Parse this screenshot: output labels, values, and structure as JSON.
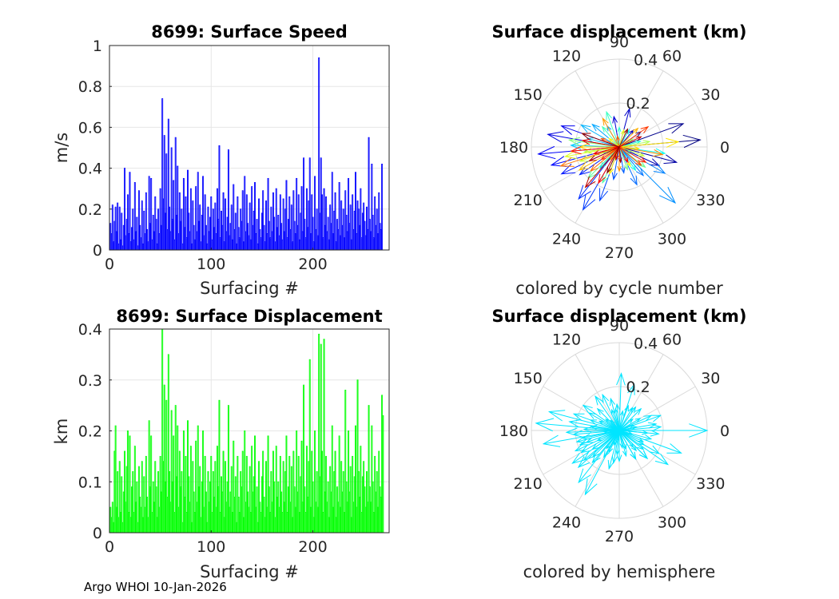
{
  "footer": "Argo WHOI 10-Jan-2026",
  "chart_data": [
    {
      "type": "bar",
      "id": "speed",
      "title": "8699: Surface Speed",
      "xlabel": "Surfacing #",
      "ylabel": "m/s",
      "xlim": [
        0,
        275
      ],
      "ylim": [
        0,
        1
      ],
      "xticks": [
        "0",
        "100",
        "200"
      ],
      "yticks": [
        "0",
        "0.2",
        "0.4",
        "0.6",
        "0.8",
        "1"
      ],
      "grid": true,
      "bar_color": "#0000ff",
      "values": [
        0.13,
        0.08,
        0.22,
        0.04,
        0.14,
        0.21,
        0.09,
        0.23,
        0.03,
        0.21,
        0.05,
        0.18,
        0.02,
        0.12,
        0.4,
        0.07,
        0.15,
        0.27,
        0.08,
        0.38,
        0.04,
        0.11,
        0.2,
        0.05,
        0.33,
        0.09,
        0.16,
        0.02,
        0.29,
        0.12,
        0.06,
        0.24,
        0.03,
        0.19,
        0.08,
        0.28,
        0.1,
        0.04,
        0.36,
        0.13,
        0.35,
        0.05,
        0.17,
        0.09,
        0.26,
        0.15,
        0.03,
        0.2,
        0.08,
        0.3,
        0.12,
        0.74,
        0.25,
        0.56,
        0.18,
        0.47,
        0.1,
        0.64,
        0.21,
        0.09,
        0.5,
        0.15,
        0.34,
        0.05,
        0.55,
        0.17,
        0.41,
        0.08,
        0.28,
        0.14,
        0.2,
        0.03,
        0.35,
        0.11,
        0.26,
        0.06,
        0.39,
        0.18,
        0.09,
        0.3,
        0.03,
        0.24,
        0.12,
        0.05,
        0.31,
        0.09,
        0.38,
        0.14,
        0.22,
        0.04,
        0.17,
        0.36,
        0.07,
        0.27,
        0.12,
        0.03,
        0.21,
        0.09,
        0.16,
        0.26,
        0.05,
        0.2,
        0.11,
        0.23,
        0.08,
        0.3,
        0.15,
        0.51,
        0.06,
        0.19,
        0.12,
        0.28,
        0.04,
        0.25,
        0.09,
        0.16,
        0.49,
        0.07,
        0.13,
        0.22,
        0.05,
        0.32,
        0.1,
        0.18,
        0.03,
        0.26,
        0.11,
        0.06,
        0.2,
        0.14,
        0.29,
        0.04,
        0.36,
        0.09,
        0.27,
        0.13,
        0.07,
        0.23,
        0.05,
        0.31,
        0.12,
        0.19,
        0.33,
        0.08,
        0.15,
        0.03,
        0.25,
        0.1,
        0.06,
        0.18,
        0.29,
        0.12,
        0.04,
        0.24,
        0.08,
        0.35,
        0.14,
        0.06,
        0.21,
        0.09,
        0.28,
        0.16,
        0.04,
        0.3,
        0.11,
        0.17,
        0.07,
        0.27,
        0.13,
        0.05,
        0.25,
        0.09,
        0.2,
        0.34,
        0.06,
        0.15,
        0.26,
        0.1,
        0.22,
        0.04,
        0.29,
        0.14,
        0.08,
        0.35,
        0.12,
        0.27,
        0.05,
        0.18,
        0.31,
        0.09,
        0.45,
        0.15,
        0.06,
        0.3,
        0.11,
        0.24,
        0.45,
        0.08,
        0.27,
        0.16,
        0.04,
        0.36,
        0.1,
        0.2,
        0.07,
        0.94,
        0.18,
        0.45,
        0.27,
        0.06,
        0.3,
        0.12,
        0.26,
        0.09,
        0.16,
        0.05,
        0.22,
        0.13,
        0.38,
        0.08,
        0.19,
        0.28,
        0.04,
        0.15,
        0.1,
        0.33,
        0.07,
        0.24,
        0.12,
        0.2,
        0.06,
        0.29,
        0.17,
        0.09,
        0.35,
        0.13,
        0.22,
        0.05,
        0.27,
        0.1,
        0.19,
        0.38,
        0.08,
        0.24,
        0.2,
        0.12,
        0.3,
        0.06,
        0.18,
        0.23,
        0.14,
        0.07,
        0.21,
        0.1,
        0.55,
        0.15,
        0.09,
        0.42,
        0.17,
        0.06,
        0.26,
        0.12,
        0.2,
        0.08,
        0.28,
        0.13,
        0.1,
        0.42
      ]
    },
    {
      "type": "bar",
      "id": "displacement",
      "title": "8699: Surface Displacement",
      "xlabel": "Surfacing #",
      "ylabel": "km",
      "xlim": [
        0,
        275
      ],
      "ylim": [
        0,
        0.4
      ],
      "xticks": [
        "0",
        "100",
        "200"
      ],
      "yticks": [
        "0",
        "0.1",
        "0.2",
        "0.3",
        "0.4"
      ],
      "grid": true,
      "bar_color": "#00ff00",
      "values": [
        0.05,
        0.03,
        0.06,
        0.02,
        0.16,
        0.21,
        0.05,
        0.12,
        0.03,
        0.14,
        0.04,
        0.11,
        0.02,
        0.08,
        0.16,
        0.06,
        0.13,
        0.2,
        0.04,
        0.19,
        0.03,
        0.09,
        0.12,
        0.04,
        0.17,
        0.06,
        0.1,
        0.02,
        0.13,
        0.07,
        0.05,
        0.14,
        0.03,
        0.11,
        0.05,
        0.15,
        0.07,
        0.03,
        0.22,
        0.09,
        0.19,
        0.04,
        0.1,
        0.06,
        0.14,
        0.09,
        0.03,
        0.12,
        0.05,
        0.15,
        0.08,
        0.4,
        0.14,
        0.29,
        0.1,
        0.26,
        0.07,
        0.35,
        0.12,
        0.06,
        0.24,
        0.1,
        0.19,
        0.04,
        0.25,
        0.11,
        0.21,
        0.05,
        0.16,
        0.09,
        0.12,
        0.02,
        0.2,
        0.07,
        0.15,
        0.04,
        0.22,
        0.11,
        0.06,
        0.17,
        0.02,
        0.14,
        0.08,
        0.04,
        0.18,
        0.06,
        0.21,
        0.09,
        0.13,
        0.03,
        0.1,
        0.2,
        0.05,
        0.15,
        0.08,
        0.02,
        0.12,
        0.06,
        0.1,
        0.15,
        0.04,
        0.12,
        0.07,
        0.14,
        0.05,
        0.17,
        0.09,
        0.26,
        0.04,
        0.11,
        0.08,
        0.16,
        0.03,
        0.14,
        0.06,
        0.1,
        0.25,
        0.05,
        0.08,
        0.13,
        0.04,
        0.18,
        0.07,
        0.11,
        0.02,
        0.15,
        0.07,
        0.04,
        0.12,
        0.09,
        0.16,
        0.03,
        0.2,
        0.06,
        0.15,
        0.08,
        0.05,
        0.13,
        0.04,
        0.17,
        0.08,
        0.11,
        0.19,
        0.05,
        0.09,
        0.02,
        0.14,
        0.06,
        0.04,
        0.11,
        0.16,
        0.07,
        0.03,
        0.14,
        0.05,
        0.19,
        0.09,
        0.04,
        0.12,
        0.06,
        0.16,
        0.1,
        0.03,
        0.17,
        0.07,
        0.1,
        0.05,
        0.15,
        0.08,
        0.04,
        0.14,
        0.06,
        0.12,
        0.19,
        0.04,
        0.09,
        0.15,
        0.06,
        0.13,
        0.03,
        0.16,
        0.09,
        0.05,
        0.2,
        0.08,
        0.15,
        0.04,
        0.11,
        0.18,
        0.06,
        0.29,
        0.09,
        0.04,
        0.17,
        0.07,
        0.14,
        0.34,
        0.05,
        0.16,
        0.1,
        0.03,
        0.2,
        0.06,
        0.12,
        0.05,
        0.39,
        0.11,
        0.37,
        0.16,
        0.04,
        0.38,
        0.08,
        0.15,
        0.06,
        0.1,
        0.03,
        0.13,
        0.08,
        0.21,
        0.05,
        0.12,
        0.16,
        0.03,
        0.09,
        0.06,
        0.19,
        0.05,
        0.14,
        0.08,
        0.12,
        0.04,
        0.28,
        0.1,
        0.06,
        0.2,
        0.08,
        0.13,
        0.03,
        0.15,
        0.06,
        0.11,
        0.21,
        0.05,
        0.3,
        0.12,
        0.07,
        0.17,
        0.04,
        0.11,
        0.14,
        0.09,
        0.05,
        0.12,
        0.06,
        0.25,
        0.09,
        0.06,
        0.21,
        0.1,
        0.04,
        0.15,
        0.08,
        0.12,
        0.05,
        0.16,
        0.09,
        0.07,
        0.27,
        0.23
      ]
    },
    {
      "type": "polar",
      "id": "polar_cycle",
      "title": "Surface displacement (km)",
      "caption": "colored by cycle number",
      "rmax": 0.4,
      "rticks": [
        "0.2",
        "0.4"
      ],
      "angle_labels": [
        "0",
        "30",
        "60",
        "90",
        "120",
        "150",
        "180",
        "210",
        "240",
        "270",
        "300",
        "330"
      ],
      "arrows": [
        [
          0.37,
          5
        ],
        [
          0.31,
          20
        ],
        [
          0.12,
          35
        ],
        [
          0.27,
          -15
        ],
        [
          0.2,
          -25
        ],
        [
          0.1,
          50
        ],
        [
          0.18,
          75
        ],
        [
          0.14,
          100
        ],
        [
          0.33,
          170
        ],
        [
          0.28,
          160
        ],
        [
          0.37,
          185
        ],
        [
          0.32,
          195
        ],
        [
          0.29,
          205
        ],
        [
          0.22,
          215
        ],
        [
          0.3,
          232
        ],
        [
          0.33,
          240
        ],
        [
          0.26,
          250
        ],
        [
          0.15,
          260
        ],
        [
          0.12,
          280
        ],
        [
          0.19,
          295
        ],
        [
          0.17,
          310
        ],
        [
          0.24,
          -30
        ],
        [
          0.36,
          -45
        ],
        [
          0.11,
          120
        ],
        [
          0.16,
          140
        ],
        [
          0.2,
          150
        ],
        [
          0.15,
          165
        ],
        [
          0.22,
          178
        ],
        [
          0.13,
          228
        ],
        [
          0.08,
          200
        ],
        [
          0.06,
          330
        ],
        [
          0.09,
          60
        ],
        [
          0.21,
          -8
        ],
        [
          0.13,
          -55
        ],
        [
          0.1,
          15
        ],
        [
          0.09,
          90
        ],
        [
          0.17,
          110
        ],
        [
          0.12,
          130
        ],
        [
          0.18,
          245
        ],
        [
          0.2,
          225
        ],
        [
          0.15,
          -38
        ],
        [
          0.11,
          -70
        ],
        [
          0.23,
          172
        ],
        [
          0.07,
          30
        ],
        [
          0.05,
          210
        ],
        [
          0.14,
          10
        ],
        [
          0.16,
          188
        ],
        [
          0.12,
          -20
        ],
        [
          0.19,
          200
        ],
        [
          0.25,
          190
        ],
        [
          0.08,
          75
        ],
        [
          0.1,
          300
        ],
        [
          0.06,
          140
        ],
        [
          0.13,
          250
        ],
        [
          0.27,
          5
        ],
        [
          0.09,
          -5
        ],
        [
          0.18,
          180
        ],
        [
          0.21,
          210
        ],
        [
          0.12,
          45
        ],
        [
          0.07,
          235
        ],
        [
          0.15,
          120
        ],
        [
          0.11,
          270
        ],
        [
          0.2,
          -10
        ],
        [
          0.28,
          198
        ],
        [
          0.17,
          220
        ],
        [
          0.05,
          100
        ],
        [
          0.09,
          155
        ],
        [
          0.13,
          320
        ],
        [
          0.16,
          35
        ],
        [
          0.1,
          215
        ],
        [
          0.14,
          -30
        ],
        [
          0.22,
          185
        ],
        [
          0.19,
          240
        ],
        [
          0.08,
          -60
        ],
        [
          0.12,
          195
        ],
        [
          0.17,
          170
        ],
        [
          0.06,
          255
        ],
        [
          0.11,
          25
        ],
        [
          0.24,
          230
        ],
        [
          0.15,
          205
        ],
        [
          0.07,
          -85
        ],
        [
          0.09,
          65
        ],
        [
          0.18,
          160
        ],
        [
          0.13,
          245
        ]
      ]
    },
    {
      "type": "polar",
      "id": "polar_hemisphere",
      "title": "Surface displacement (km)",
      "caption": "colored by hemisphere",
      "rmax": 0.4,
      "rticks": [
        "0.2",
        "0.4"
      ],
      "angle_labels": [
        "0",
        "30",
        "60",
        "90",
        "120",
        "150",
        "180",
        "210",
        "240",
        "270",
        "300",
        "330"
      ],
      "color": "#00e5ff",
      "arrows": [
        [
          0.4,
          0
        ],
        [
          0.3,
          -20
        ],
        [
          0.27,
          -35
        ],
        [
          0.2,
          20
        ],
        [
          0.14,
          45
        ],
        [
          0.26,
          88
        ],
        [
          0.22,
          72
        ],
        [
          0.15,
          105
        ],
        [
          0.19,
          125
        ],
        [
          0.33,
          165
        ],
        [
          0.38,
          175
        ],
        [
          0.35,
          190
        ],
        [
          0.22,
          205
        ],
        [
          0.25,
          222
        ],
        [
          0.3,
          232
        ],
        [
          0.33,
          242
        ],
        [
          0.18,
          255
        ],
        [
          0.14,
          270
        ],
        [
          0.12,
          285
        ],
        [
          0.15,
          300
        ],
        [
          0.18,
          315
        ],
        [
          0.21,
          330
        ],
        [
          0.1,
          100
        ],
        [
          0.08,
          140
        ],
        [
          0.16,
          150
        ],
        [
          0.12,
          60
        ],
        [
          0.11,
          30
        ],
        [
          0.17,
          10
        ],
        [
          0.13,
          -5
        ],
        [
          0.24,
          182
        ],
        [
          0.2,
          195
        ],
        [
          0.15,
          215
        ],
        [
          0.1,
          235
        ],
        [
          0.07,
          250
        ],
        [
          0.12,
          -50
        ],
        [
          0.09,
          80
        ],
        [
          0.18,
          115
        ],
        [
          0.14,
          160
        ],
        [
          0.23,
          170
        ],
        [
          0.16,
          200
        ],
        [
          0.26,
          215
        ],
        [
          0.11,
          265
        ],
        [
          0.13,
          -30
        ],
        [
          0.19,
          5
        ],
        [
          0.08,
          40
        ],
        [
          0.06,
          130
        ],
        [
          0.21,
          185
        ],
        [
          0.17,
          225
        ],
        [
          0.1,
          310
        ],
        [
          0.15,
          -15
        ],
        [
          0.12,
          95
        ],
        [
          0.2,
          145
        ],
        [
          0.09,
          -70
        ],
        [
          0.14,
          240
        ],
        [
          0.18,
          -45
        ],
        [
          0.07,
          20
        ],
        [
          0.16,
          178
        ],
        [
          0.11,
          205
        ],
        [
          0.13,
          55
        ],
        [
          0.19,
          230
        ],
        [
          0.08,
          -80
        ],
        [
          0.22,
          160
        ],
        [
          0.12,
          -25
        ],
        [
          0.1,
          110
        ],
        [
          0.15,
          260
        ],
        [
          0.17,
          192
        ],
        [
          0.06,
          345
        ],
        [
          0.14,
          135
        ],
        [
          0.2,
          210
        ],
        [
          0.09,
          290
        ],
        [
          0.16,
          25
        ],
        [
          0.13,
          172
        ],
        [
          0.11,
          245
        ],
        [
          0.18,
          -5
        ],
        [
          0.12,
          70
        ],
        [
          0.21,
          220
        ],
        [
          0.07,
          185
        ],
        [
          0.15,
          -60
        ],
        [
          0.1,
          155
        ],
        [
          0.19,
          200
        ],
        [
          0.14,
          -38
        ],
        [
          0.08,
          12
        ]
      ]
    }
  ]
}
